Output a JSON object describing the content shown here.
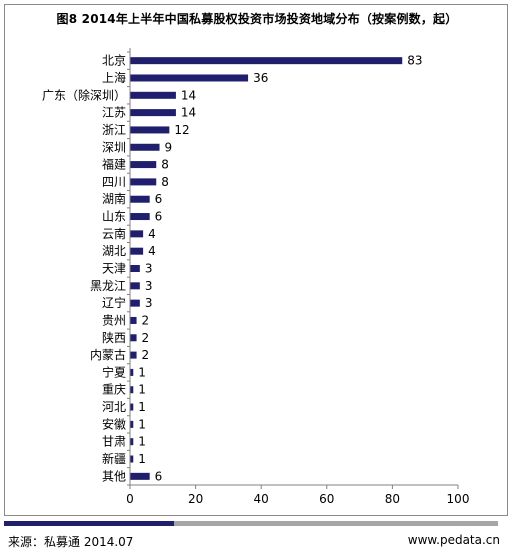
{
  "title": "图8 2014年上半年中国私募股权投资市场投资地域分布（按案例数，起）",
  "source": "来源：私募通  2014.07",
  "site": "www.pedata.cn",
  "colors": {
    "bar": "#1f1f6e",
    "axis": "#808080",
    "footer_accent": "#1f1f6e",
    "footer_bar": "#a6a6a6"
  },
  "chart_data": {
    "type": "bar",
    "orientation": "horizontal",
    "categories": [
      "北京",
      "上海",
      "广东（除深圳）",
      "江苏",
      "浙江",
      "深圳",
      "福建",
      "四川",
      "湖南",
      "山东",
      "云南",
      "湖北",
      "天津",
      "黑龙江",
      "辽宁",
      "贵州",
      "陕西",
      "内蒙古",
      "宁夏",
      "重庆",
      "河北",
      "安徽",
      "甘肃",
      "新疆",
      "其他"
    ],
    "values": [
      83,
      36,
      14,
      14,
      12,
      9,
      8,
      8,
      6,
      6,
      4,
      4,
      3,
      3,
      3,
      2,
      2,
      2,
      1,
      1,
      1,
      1,
      1,
      1,
      6
    ],
    "xlim": [
      0,
      100
    ],
    "xticks": [
      0,
      20,
      40,
      60,
      80,
      100
    ],
    "data_labels": true,
    "grid": false
  }
}
